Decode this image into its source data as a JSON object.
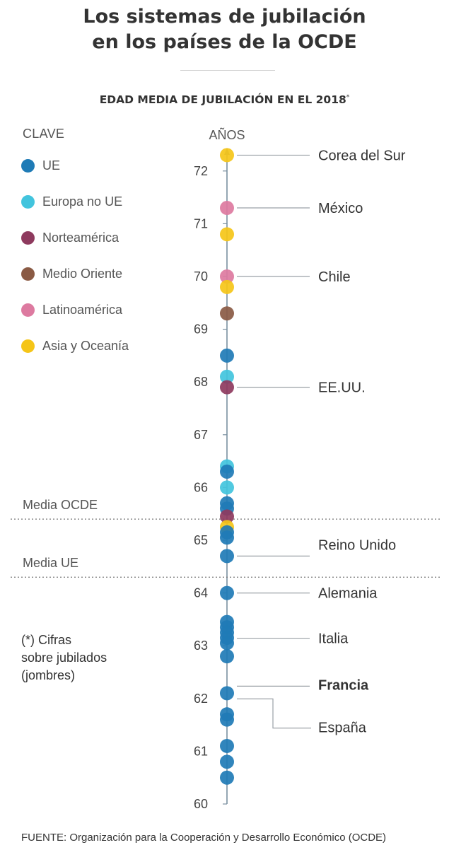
{
  "header": {
    "title_line1": "Los sistemas de jubilación",
    "title_line2": "en los países de la OCDE",
    "subtitle": "EDAD MEDIA DE JUBILACIÓN EN EL 2018",
    "subtitle_mark": "*"
  },
  "legend": {
    "title": "CLAVE",
    "items": [
      {
        "label": "UE",
        "color": "#1f7bb6"
      },
      {
        "label": "Europa no UE",
        "color": "#42c4dd"
      },
      {
        "label": "Norteamérica",
        "color": "#8e3a5e"
      },
      {
        "label": "Medio Oriente",
        "color": "#8a5a44"
      },
      {
        "label": "Latinoamérica",
        "color": "#dd7aa0"
      },
      {
        "label": "Asia y Oceanía",
        "color": "#f5c518"
      }
    ]
  },
  "note": {
    "line1": "(*) Cifras",
    "line2": "sobre jubilados",
    "line3": "(jombres)"
  },
  "source": "FUENTE: Organización para la Cooperación y Desarrollo Económico (OCDE)",
  "chart_data": {
    "type": "scatter",
    "ylabel": "AÑOS",
    "ylim": [
      60,
      72.6
    ],
    "yticks": [
      60,
      61,
      62,
      63,
      64,
      65,
      66,
      67,
      68,
      69,
      70,
      71,
      72
    ],
    "reference_lines": [
      {
        "label": "Media OCDE",
        "value": 65.4
      },
      {
        "label": "Media UE",
        "value": 64.3
      }
    ],
    "points": [
      {
        "group": "Asia y Oceanía",
        "value": 72.3,
        "label": "Corea del Sur"
      },
      {
        "group": "Latinoamérica",
        "value": 71.3,
        "label": "México"
      },
      {
        "group": "Asia y Oceanía",
        "value": 70.8
      },
      {
        "group": "Latinoamérica",
        "value": 70.0,
        "label": "Chile"
      },
      {
        "group": "Asia y Oceanía",
        "value": 69.8
      },
      {
        "group": "Medio Oriente",
        "value": 69.3
      },
      {
        "group": "UE",
        "value": 68.5
      },
      {
        "group": "Europa no UE",
        "value": 68.1
      },
      {
        "group": "Norteamérica",
        "value": 67.9,
        "label": "EE.UU."
      },
      {
        "group": "Europa no UE",
        "value": 66.4
      },
      {
        "group": "UE",
        "value": 66.3
      },
      {
        "group": "Europa no UE",
        "value": 66.0
      },
      {
        "group": "UE",
        "value": 65.7
      },
      {
        "group": "UE",
        "value": 65.6
      },
      {
        "group": "Norteamérica",
        "value": 65.45
      },
      {
        "group": "Asia y Oceanía",
        "value": 65.25
      },
      {
        "group": "UE",
        "value": 65.15
      },
      {
        "group": "UE",
        "value": 65.05
      },
      {
        "group": "UE",
        "value": 64.7,
        "label": "Reino Unido"
      },
      {
        "group": "UE",
        "value": 64.0,
        "label": "Alemania"
      },
      {
        "group": "UE",
        "value": 63.45
      },
      {
        "group": "UE",
        "value": 63.35
      },
      {
        "group": "UE",
        "value": 63.25,
        "label": "Italia"
      },
      {
        "group": "UE",
        "value": 63.15
      },
      {
        "group": "UE",
        "value": 63.05
      },
      {
        "group": "UE",
        "value": 62.8
      },
      {
        "group": "UE",
        "value": 62.1,
        "label": "Francia",
        "bold": true
      },
      {
        "group": "UE",
        "value": 61.7
      },
      {
        "group": "UE",
        "value": 61.6,
        "label": "España"
      },
      {
        "group": "UE",
        "value": 61.1
      },
      {
        "group": "UE",
        "value": 60.8
      },
      {
        "group": "UE",
        "value": 60.5
      }
    ]
  }
}
